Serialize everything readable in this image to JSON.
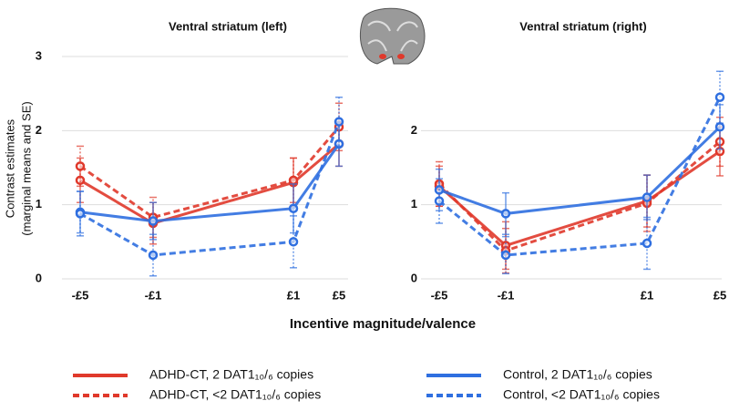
{
  "y_label": [
    "Contrast estimates",
    "(marginal means and SE)"
  ],
  "x_label": "Incentive magnitude/valence",
  "legend": {
    "entries": [
      {
        "name": "ADHD-CT, 2 DAT1₁₀/₆ copies",
        "color": "#e0392b",
        "style": "solid"
      },
      {
        "name": "ADHD-CT, <2 DAT1₁₀/₆ copies",
        "color": "#e0392b",
        "style": "dashed"
      },
      {
        "name": "Control, 2 DAT1₁₀/₆ copies",
        "color": "#2f6fe0",
        "style": "solid"
      },
      {
        "name": "Control, <2 DAT1₁₀/₆ copies",
        "color": "#2f6fe0",
        "style": "dashed"
      }
    ]
  },
  "chart_data": [
    {
      "type": "line",
      "title": "Ventral striatum (left)",
      "categories": [
        "-£5",
        "-£1",
        "£1",
        "£5"
      ],
      "ylim": [
        0,
        3
      ],
      "yticks": [
        0,
        1,
        2,
        3
      ],
      "grid": true,
      "series": [
        {
          "values": [
            1.33,
            0.75,
            1.3,
            1.82
          ],
          "errors": [
            0.3,
            0.28,
            0.33,
            0.3
          ]
        },
        {
          "values": [
            1.52,
            0.83,
            1.33,
            2.05
          ],
          "errors": [
            0.27,
            0.27,
            0.3,
            0.32
          ]
        },
        {
          "values": [
            0.9,
            0.78,
            0.95,
            1.82
          ],
          "errors": [
            0.28,
            0.25,
            0.33,
            0.3
          ]
        },
        {
          "values": [
            0.88,
            0.32,
            0.5,
            2.12
          ],
          "errors": [
            0.3,
            0.28,
            0.35,
            0.33
          ]
        }
      ]
    },
    {
      "type": "line",
      "title": "Ventral striatum (right)",
      "categories": [
        "-£5",
        "-£1",
        "£1",
        "£5"
      ],
      "ylim": [
        0,
        3
      ],
      "yticks": [
        0,
        1,
        2
      ],
      "grid": true,
      "series": [
        {
          "values": [
            1.25,
            0.45,
            1.05,
            1.72
          ],
          "errors": [
            0.27,
            0.32,
            0.35,
            0.33
          ]
        },
        {
          "values": [
            1.28,
            0.38,
            1.02,
            1.85
          ],
          "errors": [
            0.3,
            0.3,
            0.38,
            0.33
          ]
        },
        {
          "values": [
            1.2,
            0.88,
            1.1,
            2.05
          ],
          "errors": [
            0.28,
            0.28,
            0.3,
            0.3
          ]
        },
        {
          "values": [
            1.05,
            0.32,
            0.48,
            2.45
          ],
          "errors": [
            0.3,
            0.25,
            0.35,
            0.35
          ]
        }
      ]
    }
  ]
}
